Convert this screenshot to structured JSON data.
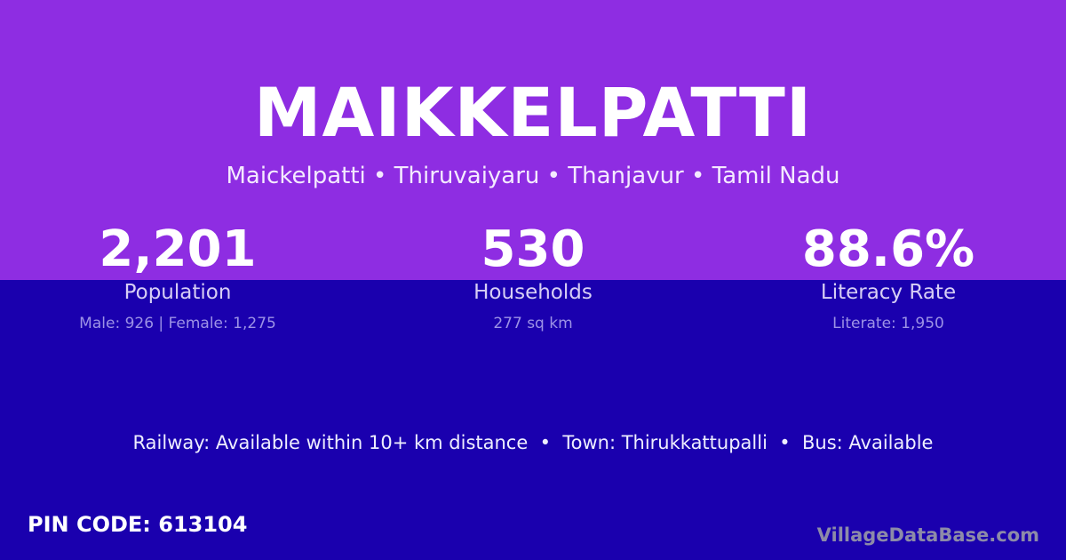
{
  "colors": {
    "top": "#8e2de2",
    "bottom": "#1a00ae"
  },
  "title": "MAIKKELPATTI",
  "subtitle": "Maickelpatti • Thiruvaiyaru • Thanjavur • Tamil Nadu",
  "stats": [
    {
      "value": "2,201",
      "label": "Population",
      "detail": "Male: 926 | Female: 1,275"
    },
    {
      "value": "530",
      "label": "Households",
      "detail": "277 sq km"
    },
    {
      "value": "88.6%",
      "label": "Literacy Rate",
      "detail": "Literate: 1,950"
    }
  ],
  "facts": "Railway: Available within 10+ km distance  •  Town: Thirukkattupalli  •  Bus: Available",
  "pin": "PIN CODE: 613104",
  "brand": "VillageDataBase.com"
}
